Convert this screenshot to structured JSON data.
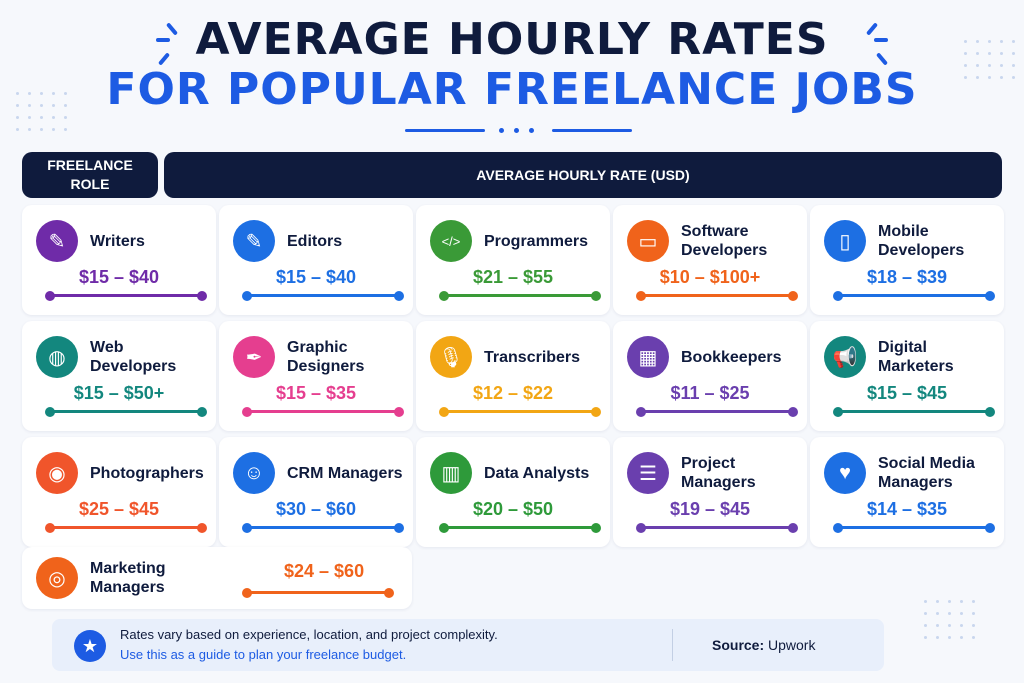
{
  "title_line1": "AVERAGE HOURLY RATES",
  "title_line2": "FOR POPULAR FREELANCE JOBS",
  "header_role": "FREELANCE ROLE",
  "header_rate": "AVERAGE HOURLY RATE (USD)",
  "cards": [
    {
      "name": "Writers",
      "rate": "$15 – $40",
      "color": "#6f2ba8",
      "icon": "edit-document-icon"
    },
    {
      "name": "Editors",
      "rate": "$15 – $40",
      "color": "#1d6fe3",
      "icon": "edit-pencil-icon"
    },
    {
      "name": "Programmers",
      "rate": "$21 – $55",
      "color": "#3a9a37",
      "icon": "code-icon"
    },
    {
      "name": "Software Developers",
      "rate": "$10 – $100+",
      "color": "#f0631b",
      "icon": "monitor-code-icon"
    },
    {
      "name": "Mobile Developers",
      "rate": "$18 – $39",
      "color": "#1d6fe3",
      "icon": "smartphone-icon"
    },
    {
      "name": "Web Developers",
      "rate": "$15 – $50+",
      "color": "#13877e",
      "icon": "globe-icon"
    },
    {
      "name": "Graphic Designers",
      "rate": "$15 – $35",
      "color": "#e53e8f",
      "icon": "pen-icon"
    },
    {
      "name": "Transcribers",
      "rate": "$12 – $22",
      "color": "#f2a614",
      "icon": "microphone-icon"
    },
    {
      "name": "Bookkeepers",
      "rate": "$11 – $25",
      "color": "#6a3fae",
      "icon": "calculator-icon"
    },
    {
      "name": "Digital Marketers",
      "rate": "$15 – $45",
      "color": "#13877e",
      "icon": "megaphone-icon"
    },
    {
      "name": "Photographers",
      "rate": "$25 – $45",
      "color": "#f0552b",
      "icon": "camera-icon"
    },
    {
      "name": "CRM Managers",
      "rate": "$30 – $60",
      "color": "#1d6fe3",
      "icon": "user-icon"
    },
    {
      "name": "Data Analysts",
      "rate": "$20 – $50",
      "color": "#2e9a3a",
      "icon": "bar-chart-icon"
    },
    {
      "name": "Project Managers",
      "rate": "$19 – $45",
      "color": "#6a3fae",
      "icon": "clipboard-icon"
    },
    {
      "name": "Social Media Managers",
      "rate": "$14 – $35",
      "color": "#1d6fe3",
      "icon": "social-likes-icon"
    },
    {
      "name": "Marketing Managers",
      "rate": "$24 – $60",
      "color": "#f0631b",
      "icon": "target-icon"
    }
  ],
  "note_line1": "Rates vary based on experience, location, and project complexity.",
  "note_line2": "Use this as a guide to plan your freelance budget.",
  "source_label": "Source:",
  "source_value": "Upwork"
}
